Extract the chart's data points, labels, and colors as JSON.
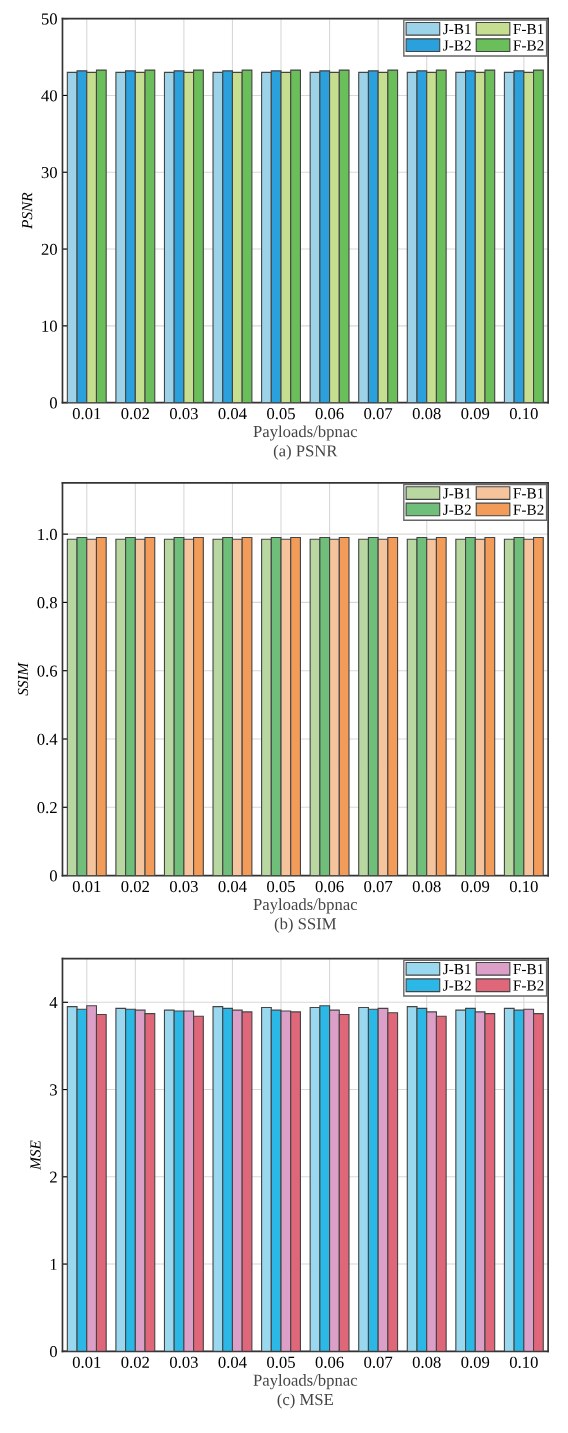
{
  "chart_data": [
    {
      "type": "bar",
      "categories": [
        "0.01",
        "0.02",
        "0.03",
        "0.04",
        "0.05",
        "0.06",
        "0.07",
        "0.08",
        "0.09",
        "0.10"
      ],
      "xlabel": "Payloads/bpnac",
      "ylabel": "PSNR",
      "annotations": [
        "(a) PSNR"
      ],
      "ylim": [
        0,
        50
      ],
      "yticks": [
        0,
        10,
        20,
        30,
        40,
        50
      ],
      "grid": true,
      "legend": "top right",
      "series": [
        {
          "name": "J-B1",
          "color": "#9dd3e8",
          "values": [
            43.0,
            43.0,
            43.0,
            43.0,
            43.0,
            43.0,
            43.0,
            43.0,
            43.0,
            43.0
          ]
        },
        {
          "name": "J-B2",
          "color": "#2aa0dc",
          "values": [
            43.2,
            43.2,
            43.2,
            43.2,
            43.2,
            43.2,
            43.2,
            43.2,
            43.2,
            43.2
          ]
        },
        {
          "name": "F-B1",
          "color": "#c5de8f",
          "values": [
            43.0,
            43.0,
            43.0,
            43.0,
            43.0,
            43.0,
            43.0,
            43.0,
            43.0,
            43.0
          ]
        },
        {
          "name": "F-B2",
          "color": "#6bbf5a",
          "values": [
            43.3,
            43.3,
            43.3,
            43.3,
            43.3,
            43.3,
            43.3,
            43.3,
            43.3,
            43.3
          ]
        }
      ]
    },
    {
      "type": "bar",
      "categories": [
        "0.01",
        "0.02",
        "0.03",
        "0.04",
        "0.05",
        "0.06",
        "0.07",
        "0.08",
        "0.09",
        "0.10"
      ],
      "xlabel": "Payloads/bpnac",
      "ylabel": "SSIM",
      "annotations": [
        "(b) SSIM"
      ],
      "ylim": [
        0,
        1.15
      ],
      "yticks": [
        {
          "value": 0,
          "label": "0"
        },
        0.2,
        0.4,
        0.6,
        0.8,
        {
          "value": 1,
          "label": "1.0"
        }
      ],
      "grid": true,
      "legend": "top right",
      "series": [
        {
          "name": "J-B1",
          "color": "#b9d7a0",
          "values": [
            0.985,
            0.985,
            0.985,
            0.985,
            0.985,
            0.985,
            0.985,
            0.985,
            0.985,
            0.985
          ]
        },
        {
          "name": "J-B2",
          "color": "#6fbf7a",
          "values": [
            0.99,
            0.99,
            0.99,
            0.99,
            0.99,
            0.99,
            0.99,
            0.99,
            0.99,
            0.99
          ]
        },
        {
          "name": "F-B1",
          "color": "#f5c39c",
          "values": [
            0.985,
            0.985,
            0.985,
            0.985,
            0.985,
            0.985,
            0.985,
            0.985,
            0.985,
            0.985
          ]
        },
        {
          "name": "F-B2",
          "color": "#f39c5a",
          "values": [
            0.99,
            0.99,
            0.99,
            0.99,
            0.99,
            0.99,
            0.99,
            0.99,
            0.99,
            0.99
          ]
        }
      ]
    },
    {
      "type": "bar",
      "categories": [
        "0.01",
        "0.02",
        "0.03",
        "0.04",
        "0.05",
        "0.06",
        "0.07",
        "0.08",
        "0.09",
        "0.10"
      ],
      "xlabel": "Payloads/bpnac",
      "ylabel": "MSE",
      "annotations": [
        "(c) MSE"
      ],
      "ylim": [
        0,
        4.5
      ],
      "yticks": [
        0,
        1,
        2,
        3,
        4
      ],
      "grid": true,
      "legend": "top right",
      "series": [
        {
          "name": "J-B1",
          "color": "#9ad8ef",
          "values": [
            3.95,
            3.93,
            3.91,
            3.95,
            3.94,
            3.94,
            3.94,
            3.95,
            3.91,
            3.93
          ]
        },
        {
          "name": "J-B2",
          "color": "#2cb8e6",
          "values": [
            3.92,
            3.92,
            3.9,
            3.93,
            3.91,
            3.96,
            3.92,
            3.93,
            3.93,
            3.91
          ]
        },
        {
          "name": "F-B1",
          "color": "#dca0c8",
          "values": [
            3.96,
            3.91,
            3.9,
            3.91,
            3.9,
            3.91,
            3.93,
            3.89,
            3.89,
            3.92
          ]
        },
        {
          "name": "F-B2",
          "color": "#e0677a",
          "values": [
            3.86,
            3.87,
            3.84,
            3.89,
            3.89,
            3.86,
            3.88,
            3.84,
            3.87,
            3.87
          ]
        }
      ]
    }
  ]
}
